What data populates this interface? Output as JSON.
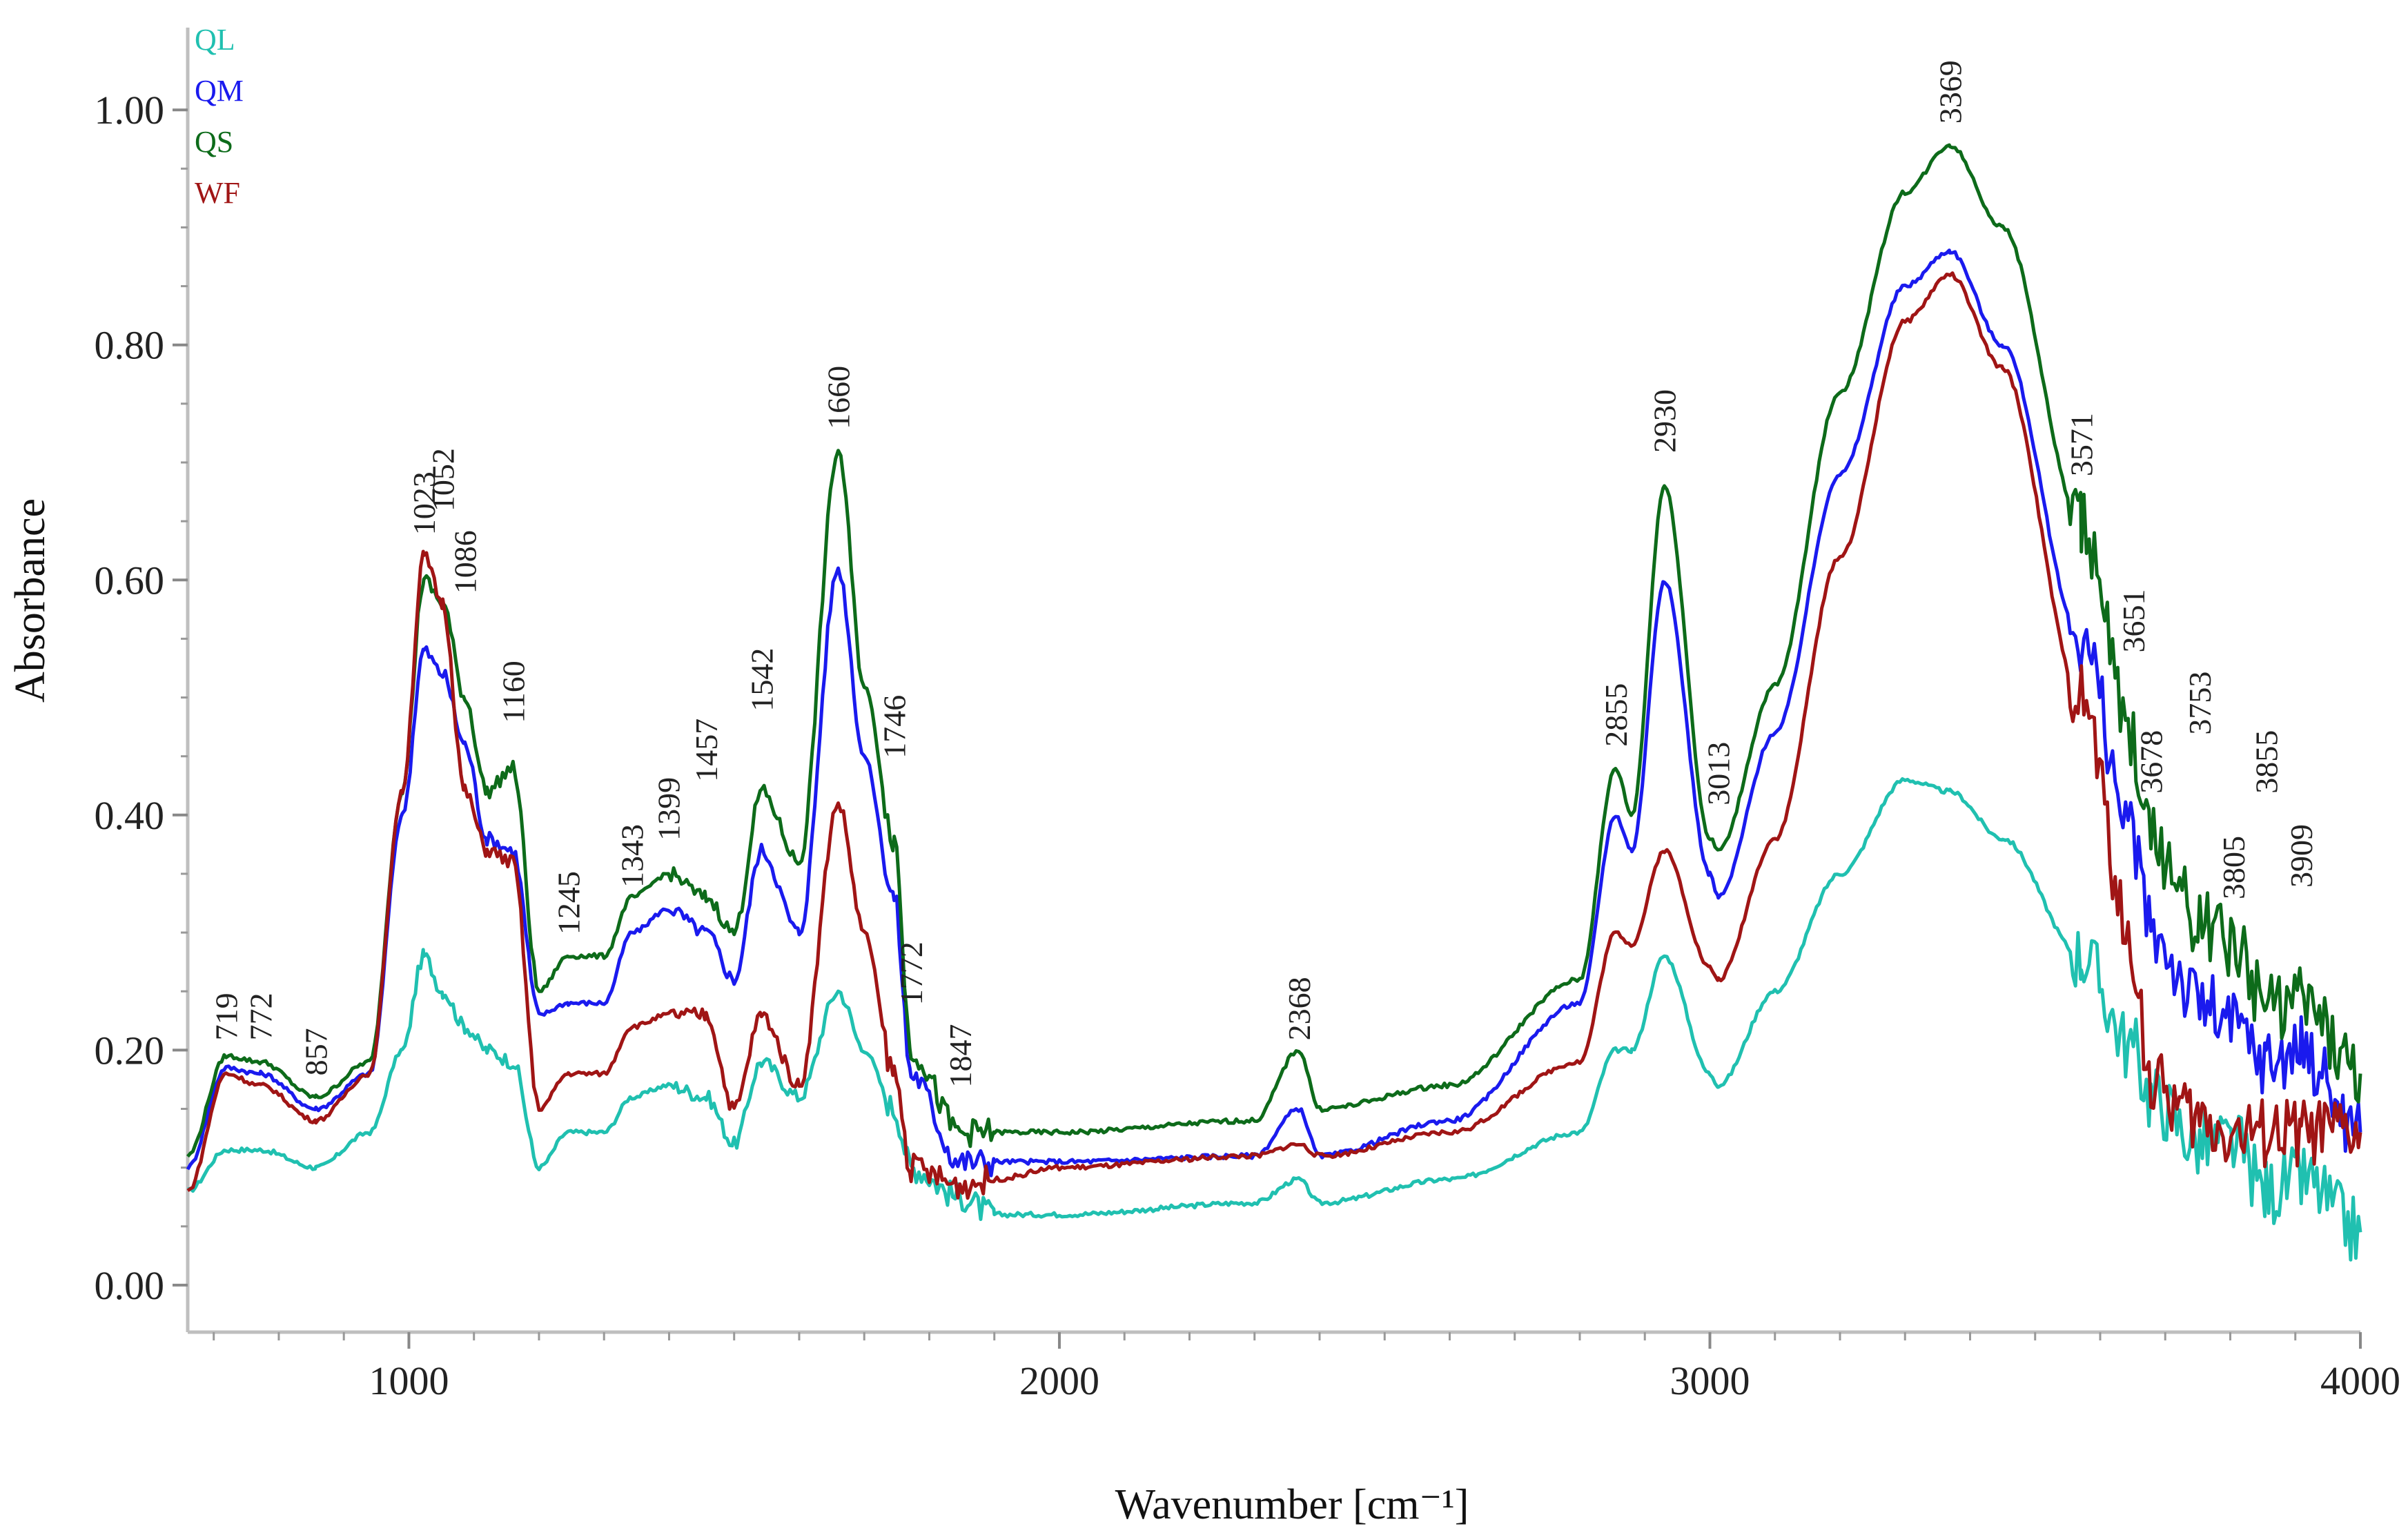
{
  "chart_data": {
    "type": "line",
    "xlabel": "Wavenumber [cm⁻¹]",
    "ylabel": "Absorbance",
    "xlim": [
      660,
      4000
    ],
    "ylim": [
      -0.04,
      1.07
    ],
    "x_ticks": [
      1000,
      2000,
      3000,
      4000
    ],
    "x_tick_labels": [
      "1000",
      "2000",
      "3000",
      "4000"
    ],
    "y_ticks": [
      0.0,
      0.2,
      0.4,
      0.6,
      0.8,
      1.0
    ],
    "y_tick_labels": [
      "0.00",
      "0.20",
      "0.40",
      "0.60",
      "0.80",
      "1.00"
    ],
    "legend_position": "top-left",
    "series": [
      {
        "name": "QL",
        "color": "#20c0b0",
        "x": [
          660,
          719,
          772,
          857,
          940,
          990,
          1023,
          1052,
          1086,
          1120,
          1160,
          1200,
          1245,
          1300,
          1343,
          1399,
          1457,
          1500,
          1542,
          1600,
          1660,
          1700,
          1746,
          1772,
          1847,
          1900,
          2000,
          2300,
          2368,
          2400,
          2600,
          2800,
          2855,
          2880,
          2930,
          3000,
          3013,
          3100,
          3200,
          3300,
          3369,
          3450,
          3571,
          3651,
          3678,
          3753,
          3805,
          3855,
          3909,
          4000
        ],
        "y": [
          0.08,
          0.115,
          0.115,
          0.1,
          0.13,
          0.2,
          0.28,
          0.25,
          0.22,
          0.2,
          0.19,
          0.1,
          0.13,
          0.13,
          0.16,
          0.17,
          0.16,
          0.12,
          0.19,
          0.16,
          0.25,
          0.2,
          0.15,
          0.1,
          0.075,
          0.06,
          0.06,
          0.07,
          0.09,
          0.07,
          0.09,
          0.13,
          0.2,
          0.2,
          0.28,
          0.18,
          0.17,
          0.25,
          0.35,
          0.43,
          0.42,
          0.38,
          0.28,
          0.2,
          0.16,
          0.12,
          0.12,
          0.08,
          0.09,
          0.045
        ]
      },
      {
        "name": "QM",
        "color": "#1a1aee",
        "x": [
          660,
          719,
          772,
          857,
          940,
          990,
          1023,
          1052,
          1086,
          1120,
          1160,
          1200,
          1245,
          1300,
          1343,
          1399,
          1457,
          1500,
          1542,
          1600,
          1660,
          1700,
          1746,
          1772,
          1847,
          1900,
          2000,
          2300,
          2368,
          2400,
          2600,
          2800,
          2855,
          2880,
          2930,
          3000,
          3013,
          3100,
          3200,
          3300,
          3369,
          3450,
          3571,
          3651,
          3678,
          3753,
          3805,
          3855,
          3909,
          4000
        ],
        "y": [
          0.1,
          0.185,
          0.18,
          0.15,
          0.18,
          0.4,
          0.54,
          0.52,
          0.46,
          0.38,
          0.37,
          0.23,
          0.24,
          0.24,
          0.3,
          0.32,
          0.3,
          0.26,
          0.37,
          0.3,
          0.61,
          0.45,
          0.33,
          0.18,
          0.105,
          0.105,
          0.105,
          0.11,
          0.15,
          0.11,
          0.14,
          0.24,
          0.4,
          0.37,
          0.6,
          0.35,
          0.33,
          0.47,
          0.69,
          0.85,
          0.88,
          0.8,
          0.55,
          0.38,
          0.3,
          0.24,
          0.22,
          0.19,
          0.2,
          0.13
        ]
      },
      {
        "name": "QS",
        "color": "#0d6b1a",
        "x": [
          660,
          719,
          772,
          857,
          940,
          990,
          1023,
          1052,
          1086,
          1120,
          1160,
          1200,
          1245,
          1300,
          1343,
          1399,
          1457,
          1500,
          1542,
          1600,
          1660,
          1700,
          1746,
          1772,
          1847,
          1900,
          2000,
          2300,
          2368,
          2400,
          2600,
          2800,
          2855,
          2880,
          2930,
          3000,
          3013,
          3100,
          3200,
          3300,
          3369,
          3450,
          3571,
          3651,
          3678,
          3753,
          3805,
          3855,
          3909,
          4000
        ],
        "y": [
          0.11,
          0.195,
          0.19,
          0.16,
          0.19,
          0.42,
          0.6,
          0.58,
          0.5,
          0.42,
          0.44,
          0.25,
          0.28,
          0.28,
          0.33,
          0.35,
          0.33,
          0.3,
          0.42,
          0.36,
          0.71,
          0.51,
          0.38,
          0.2,
          0.13,
          0.13,
          0.13,
          0.14,
          0.2,
          0.15,
          0.17,
          0.26,
          0.44,
          0.4,
          0.68,
          0.38,
          0.37,
          0.51,
          0.76,
          0.93,
          0.97,
          0.9,
          0.65,
          0.46,
          0.38,
          0.31,
          0.29,
          0.24,
          0.24,
          0.18
        ]
      },
      {
        "name": "WF",
        "color": "#a01515",
        "x": [
          660,
          719,
          772,
          857,
          940,
          990,
          1023,
          1052,
          1086,
          1120,
          1160,
          1200,
          1245,
          1300,
          1343,
          1399,
          1457,
          1500,
          1542,
          1600,
          1660,
          1700,
          1746,
          1772,
          1847,
          1900,
          2000,
          2300,
          2368,
          2400,
          2600,
          2800,
          2855,
          2880,
          2930,
          3000,
          3013,
          3100,
          3200,
          3300,
          3369,
          3450,
          3571,
          3651,
          3678,
          3753,
          3805,
          3855,
          3909,
          4000
        ],
        "y": [
          0.08,
          0.18,
          0.17,
          0.14,
          0.18,
          0.42,
          0.62,
          0.58,
          0.42,
          0.37,
          0.36,
          0.15,
          0.18,
          0.18,
          0.22,
          0.23,
          0.23,
          0.15,
          0.23,
          0.17,
          0.41,
          0.3,
          0.18,
          0.1,
          0.085,
          0.09,
          0.1,
          0.11,
          0.12,
          0.11,
          0.13,
          0.19,
          0.3,
          0.29,
          0.37,
          0.27,
          0.26,
          0.38,
          0.62,
          0.82,
          0.86,
          0.78,
          0.5,
          0.28,
          0.17,
          0.14,
          0.13,
          0.13,
          0.13,
          0.13
        ]
      }
    ],
    "annotations": [
      {
        "label": "719",
        "x": 719,
        "y": 0.2
      },
      {
        "label": "772",
        "x": 772,
        "y": 0.2
      },
      {
        "label": "857",
        "x": 857,
        "y": 0.17
      },
      {
        "label": "1023",
        "x": 1023,
        "y": 0.63
      },
      {
        "label": "1052",
        "x": 1052,
        "y": 0.65
      },
      {
        "label": "1086",
        "x": 1086,
        "y": 0.58
      },
      {
        "label": "1160",
        "x": 1160,
        "y": 0.47
      },
      {
        "label": "1245",
        "x": 1245,
        "y": 0.29
      },
      {
        "label": "1343",
        "x": 1343,
        "y": 0.33
      },
      {
        "label": "1399",
        "x": 1399,
        "y": 0.37
      },
      {
        "label": "1457",
        "x": 1457,
        "y": 0.42
      },
      {
        "label": "1542",
        "x": 1542,
        "y": 0.48
      },
      {
        "label": "1660",
        "x": 1660,
        "y": 0.72
      },
      {
        "label": "1746",
        "x": 1746,
        "y": 0.44
      },
      {
        "label": "1772",
        "x": 1772,
        "y": 0.23
      },
      {
        "label": "1847",
        "x": 1847,
        "y": 0.16
      },
      {
        "label": "2368",
        "x": 2368,
        "y": 0.2
      },
      {
        "label": "2855",
        "x": 2855,
        "y": 0.45
      },
      {
        "label": "2930",
        "x": 2930,
        "y": 0.7
      },
      {
        "label": "3013",
        "x": 3013,
        "y": 0.4
      },
      {
        "label": "3369",
        "x": 3369,
        "y": 0.98
      },
      {
        "label": "3571",
        "x": 3571,
        "y": 0.68
      },
      {
        "label": "3651",
        "x": 3651,
        "y": 0.53
      },
      {
        "label": "3678",
        "x": 3678,
        "y": 0.41
      },
      {
        "label": "3753",
        "x": 3753,
        "y": 0.46
      },
      {
        "label": "3805",
        "x": 3805,
        "y": 0.32
      },
      {
        "label": "3855",
        "x": 3855,
        "y": 0.41
      },
      {
        "label": "3909",
        "x": 3909,
        "y": 0.33
      }
    ]
  }
}
